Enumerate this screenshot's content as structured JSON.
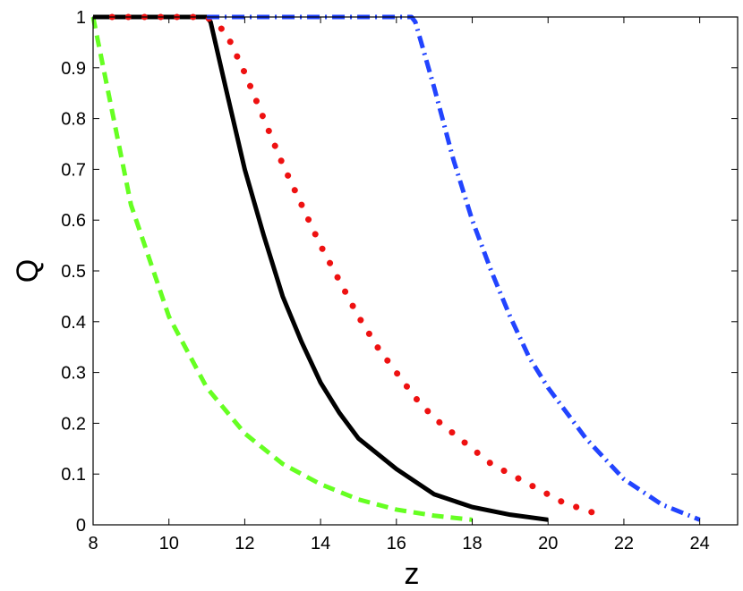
{
  "chart_data": {
    "type": "line",
    "xlabel": "z",
    "ylabel": "Q",
    "xlim": [
      8,
      25
    ],
    "ylim": [
      0,
      1
    ],
    "xticks": [
      8,
      10,
      12,
      14,
      16,
      18,
      20,
      22,
      24
    ],
    "yticks": [
      0,
      0.1,
      0.2,
      0.3,
      0.4,
      0.5,
      0.6,
      0.7,
      0.8,
      0.9,
      1
    ],
    "ytick_labels": [
      "0",
      "0.1",
      "0.2",
      "0.3",
      "0.4",
      "0.5",
      "0.6",
      "0.7",
      "0.8",
      "0.9",
      "1"
    ],
    "grid": false,
    "series": [
      {
        "style": "dashed",
        "color": "#66ff22",
        "x": [
          8.0,
          9.0,
          10.0,
          11.0,
          12.0,
          13.0,
          14.0,
          15.0,
          16.0,
          17.0,
          18.0
        ],
        "y": [
          1.0,
          0.63,
          0.41,
          0.27,
          0.18,
          0.12,
          0.08,
          0.05,
          0.03,
          0.018,
          0.01
        ]
      },
      {
        "style": "solid",
        "color": "#000000",
        "x": [
          8.0,
          11.0,
          11.1,
          11.5,
          12.0,
          12.5,
          13.0,
          13.5,
          14.0,
          14.5,
          15.0,
          16.0,
          17.0,
          18.0,
          19.0,
          20.0
        ],
        "y": [
          1.0,
          1.0,
          0.99,
          0.86,
          0.7,
          0.57,
          0.45,
          0.36,
          0.28,
          0.22,
          0.17,
          0.11,
          0.06,
          0.035,
          0.02,
          0.01
        ]
      },
      {
        "style": "dotted",
        "color": "#ee1111",
        "x": [
          8.5,
          9.0,
          9.5,
          10.0,
          10.5,
          11.0,
          11.5,
          12.0,
          12.5,
          13.0,
          13.5,
          14.0,
          14.5,
          15.0,
          15.5,
          16.0,
          16.5,
          17.0,
          17.5,
          18.0,
          18.5,
          19.0,
          19.5,
          20.0,
          20.5,
          21.0,
          21.3
        ],
        "y": [
          1.0,
          1.0,
          1.0,
          1.0,
          1.0,
          1.0,
          0.97,
          0.89,
          0.8,
          0.71,
          0.63,
          0.55,
          0.48,
          0.41,
          0.35,
          0.3,
          0.25,
          0.21,
          0.18,
          0.15,
          0.12,
          0.1,
          0.08,
          0.06,
          0.04,
          0.03,
          0.02
        ]
      },
      {
        "style": "dashdot",
        "color": "#2244ff",
        "x": [
          11.0,
          16.4,
          16.5,
          17.0,
          17.5,
          18.0,
          18.5,
          19.0,
          19.5,
          20.0,
          21.0,
          22.0,
          23.0,
          24.0
        ],
        "y": [
          1.0,
          1.0,
          0.99,
          0.86,
          0.72,
          0.6,
          0.5,
          0.41,
          0.33,
          0.27,
          0.17,
          0.09,
          0.04,
          0.01
        ]
      }
    ]
  }
}
